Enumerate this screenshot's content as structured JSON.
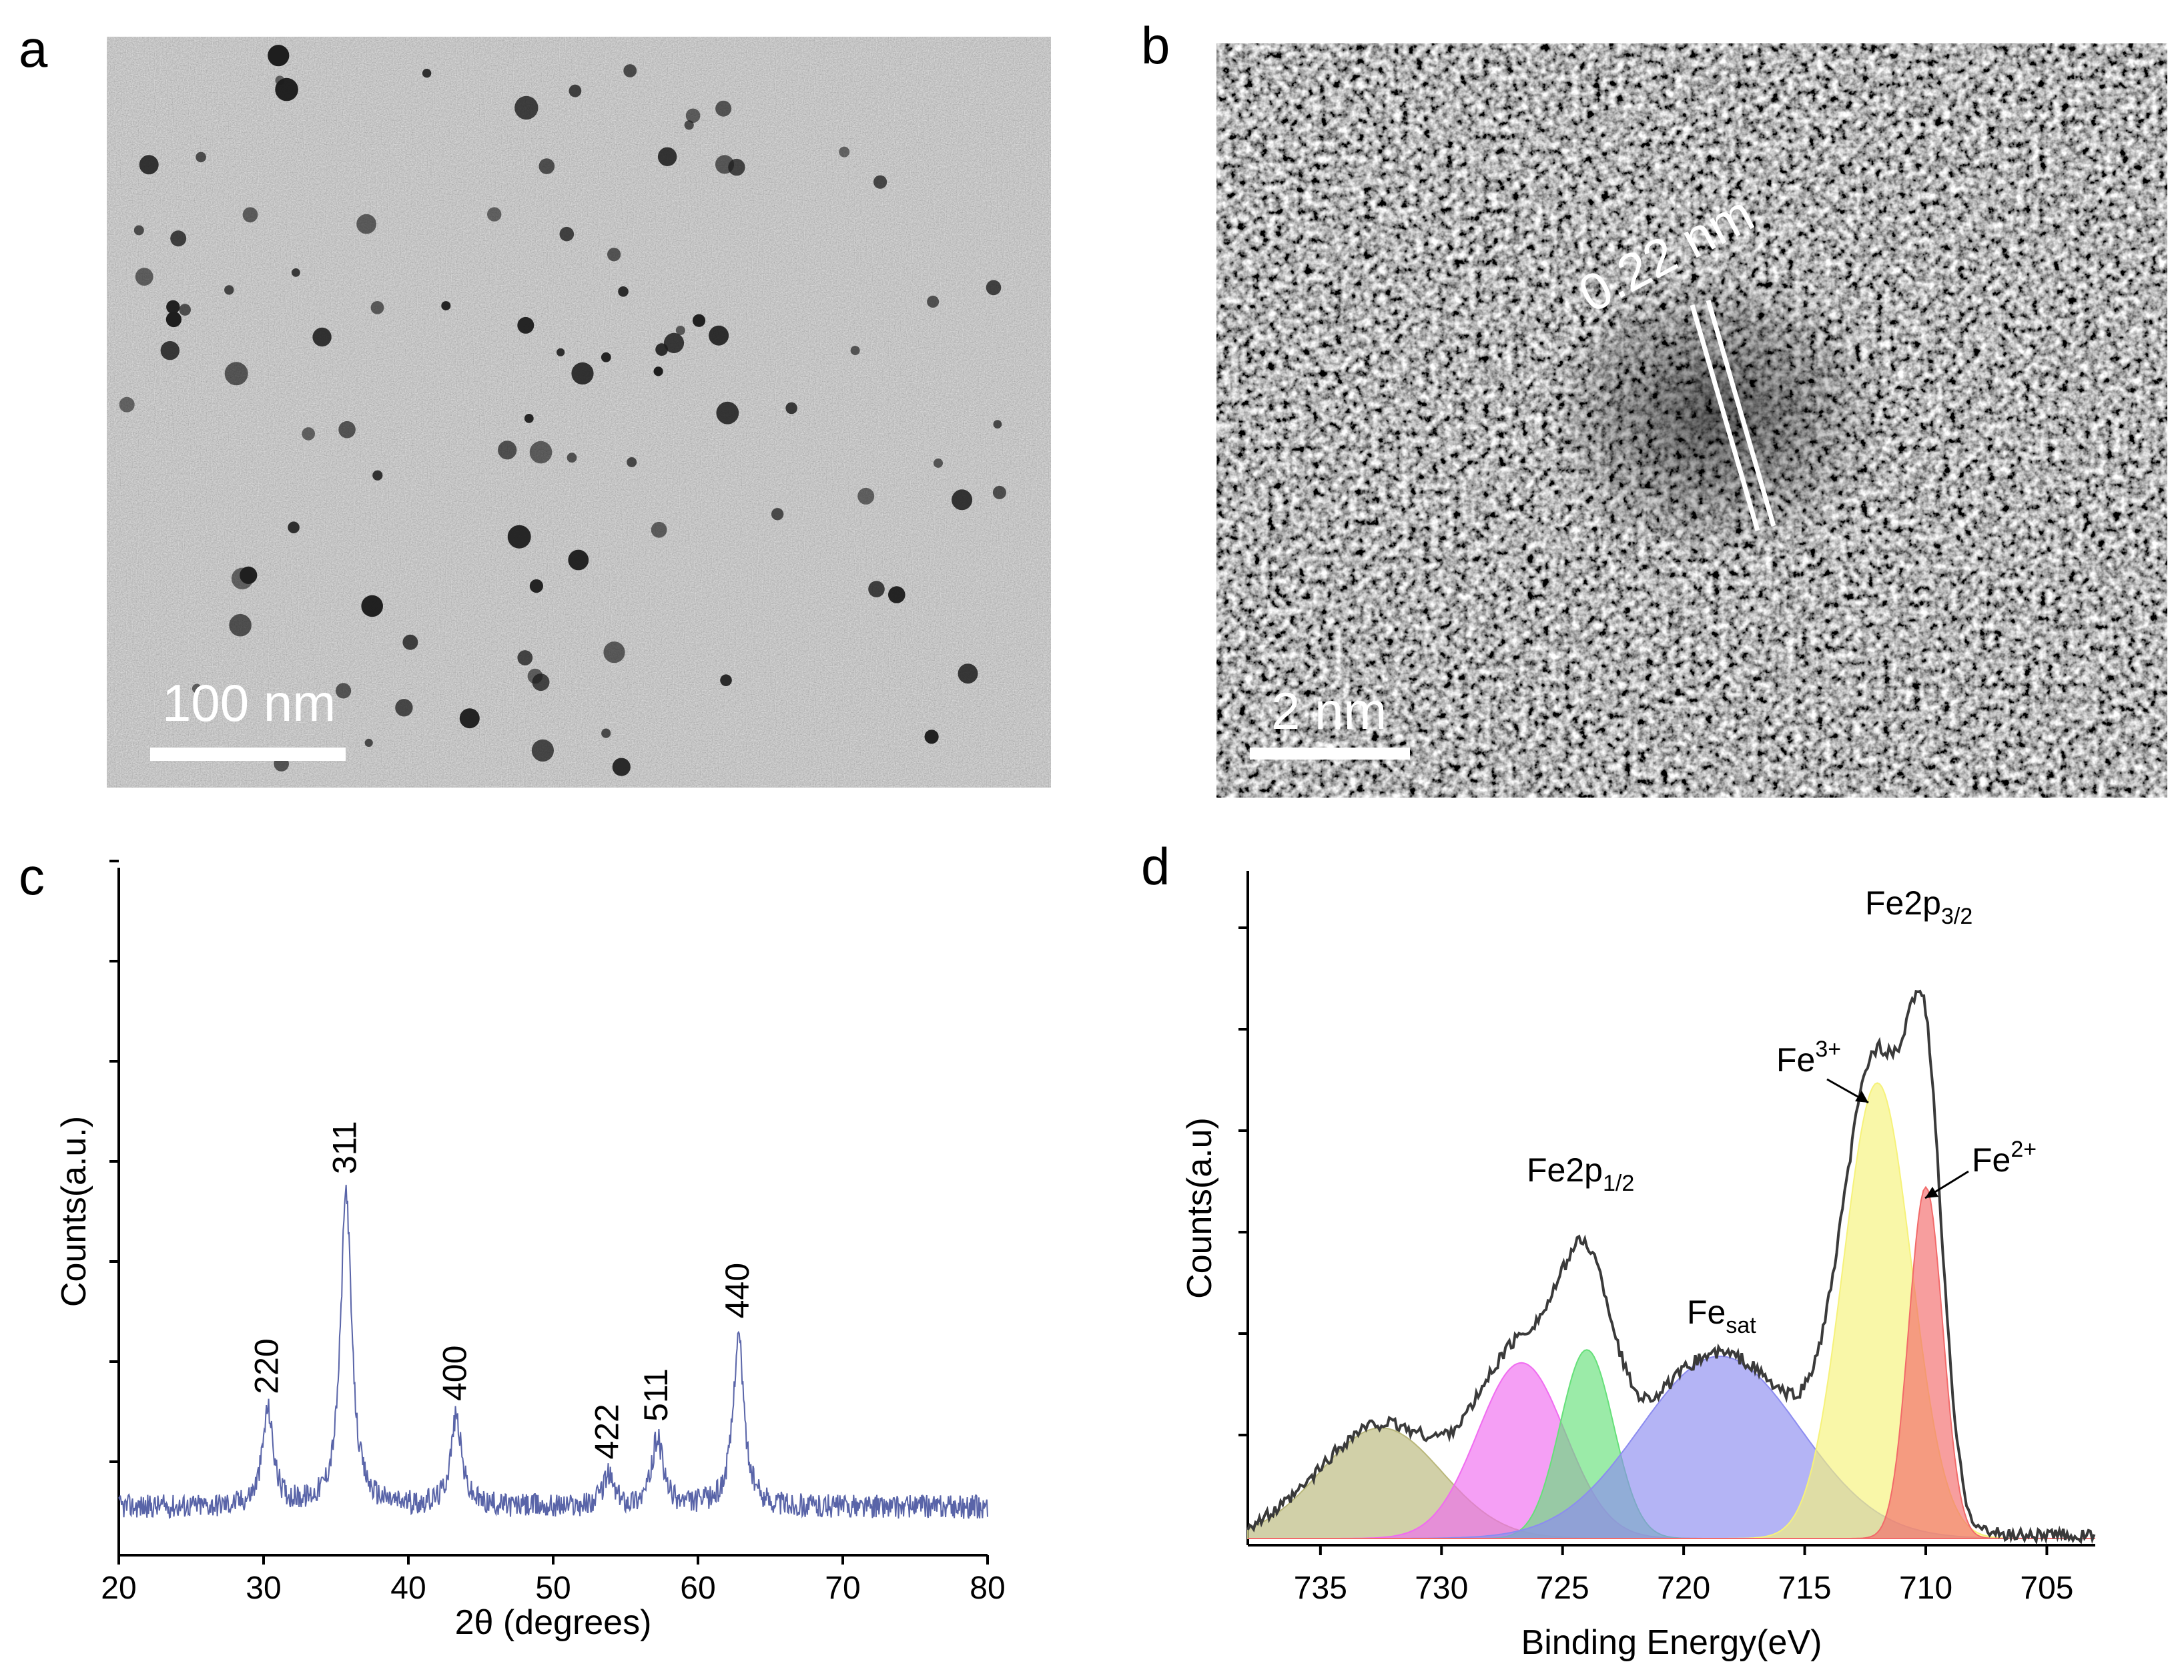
{
  "panels": {
    "a": {
      "letter": "a",
      "scale_bar_label": "100 nm"
    },
    "b": {
      "letter": "b",
      "scale_bar_label": "2 nm",
      "lattice_label": "0.22 nm"
    },
    "c": {
      "letter": "c"
    },
    "d": {
      "letter": "d"
    }
  },
  "colors": {
    "xrd_line": "#5964a8",
    "xps_envelope": "#3a3a3a",
    "fit_olive": "#b9b77a",
    "fit_magenta": "#f06bf0",
    "fit_green": "#66e07a",
    "fit_blue": "#8c8cf0",
    "fit_yellow": "#f6f27a",
    "fit_red": "#f26a6a"
  },
  "chart_data": [
    {
      "panel": "c",
      "type": "line",
      "xlabel": "2θ (degrees)",
      "ylabel": "Counts(a.u.)",
      "xlim": [
        20,
        80
      ],
      "xticks": [
        20,
        30,
        40,
        50,
        60,
        70,
        80
      ],
      "xtick_labels": [
        "20",
        "30",
        "40",
        "50",
        "60",
        "70",
        "80"
      ],
      "y_ticks_unlabeled": 7,
      "peaks": [
        {
          "label": "220",
          "x": 30.3,
          "height": 0.14
        },
        {
          "label": "311",
          "x": 35.7,
          "height": 0.46
        },
        {
          "label": "400",
          "x": 43.3,
          "height": 0.13
        },
        {
          "label": "422",
          "x": 53.8,
          "height": 0.045
        },
        {
          "label": "511",
          "x": 57.2,
          "height": 0.1
        },
        {
          "label": "440",
          "x": 62.8,
          "height": 0.25
        }
      ],
      "baseline": 0.07
    },
    {
      "panel": "d",
      "type": "area",
      "xlabel": "Binding Energy(eV)",
      "ylabel": "Counts(a.u)",
      "xlim": [
        738,
        703
      ],
      "xticks": [
        735,
        730,
        725,
        720,
        715,
        710,
        705
      ],
      "xtick_labels": [
        "735",
        "730",
        "725",
        "720",
        "715",
        "710",
        "705"
      ],
      "y_ticks_unlabeled": 6,
      "series": [
        {
          "center": 732.5,
          "height": 0.17,
          "width": 2.5,
          "color_key": "fit_olive"
        },
        {
          "center": 726.7,
          "height": 0.27,
          "width": 1.8,
          "color_key": "fit_magenta"
        },
        {
          "center": 724.0,
          "height": 0.29,
          "width": 1.1,
          "color_key": "fit_green"
        },
        {
          "center": 718.5,
          "height": 0.28,
          "width": 3.3,
          "color_key": "fit_blue"
        },
        {
          "center": 712.0,
          "height": 0.7,
          "width": 1.4,
          "color_key": "fit_yellow"
        },
        {
          "center": 710.0,
          "height": 0.54,
          "width": 0.7,
          "color_key": "fit_red"
        }
      ],
      "envelope_peaks": [
        {
          "x": 710.8,
          "y": 0.94
        },
        {
          "x": 724.2,
          "y": 0.54
        },
        {
          "x": 719.0,
          "y": 0.3
        }
      ],
      "annotations": {
        "fe2p32_main": "Fe2p",
        "fe2p32_sub": "3/2",
        "fe2p12_main": "Fe2p",
        "fe2p12_sub": "1/2",
        "fesat_main": "Fe",
        "fesat_sub": "sat",
        "fe3_main": "Fe",
        "fe3_sup": "3+",
        "fe2_main": "Fe",
        "fe2_sup": "2+"
      }
    }
  ]
}
